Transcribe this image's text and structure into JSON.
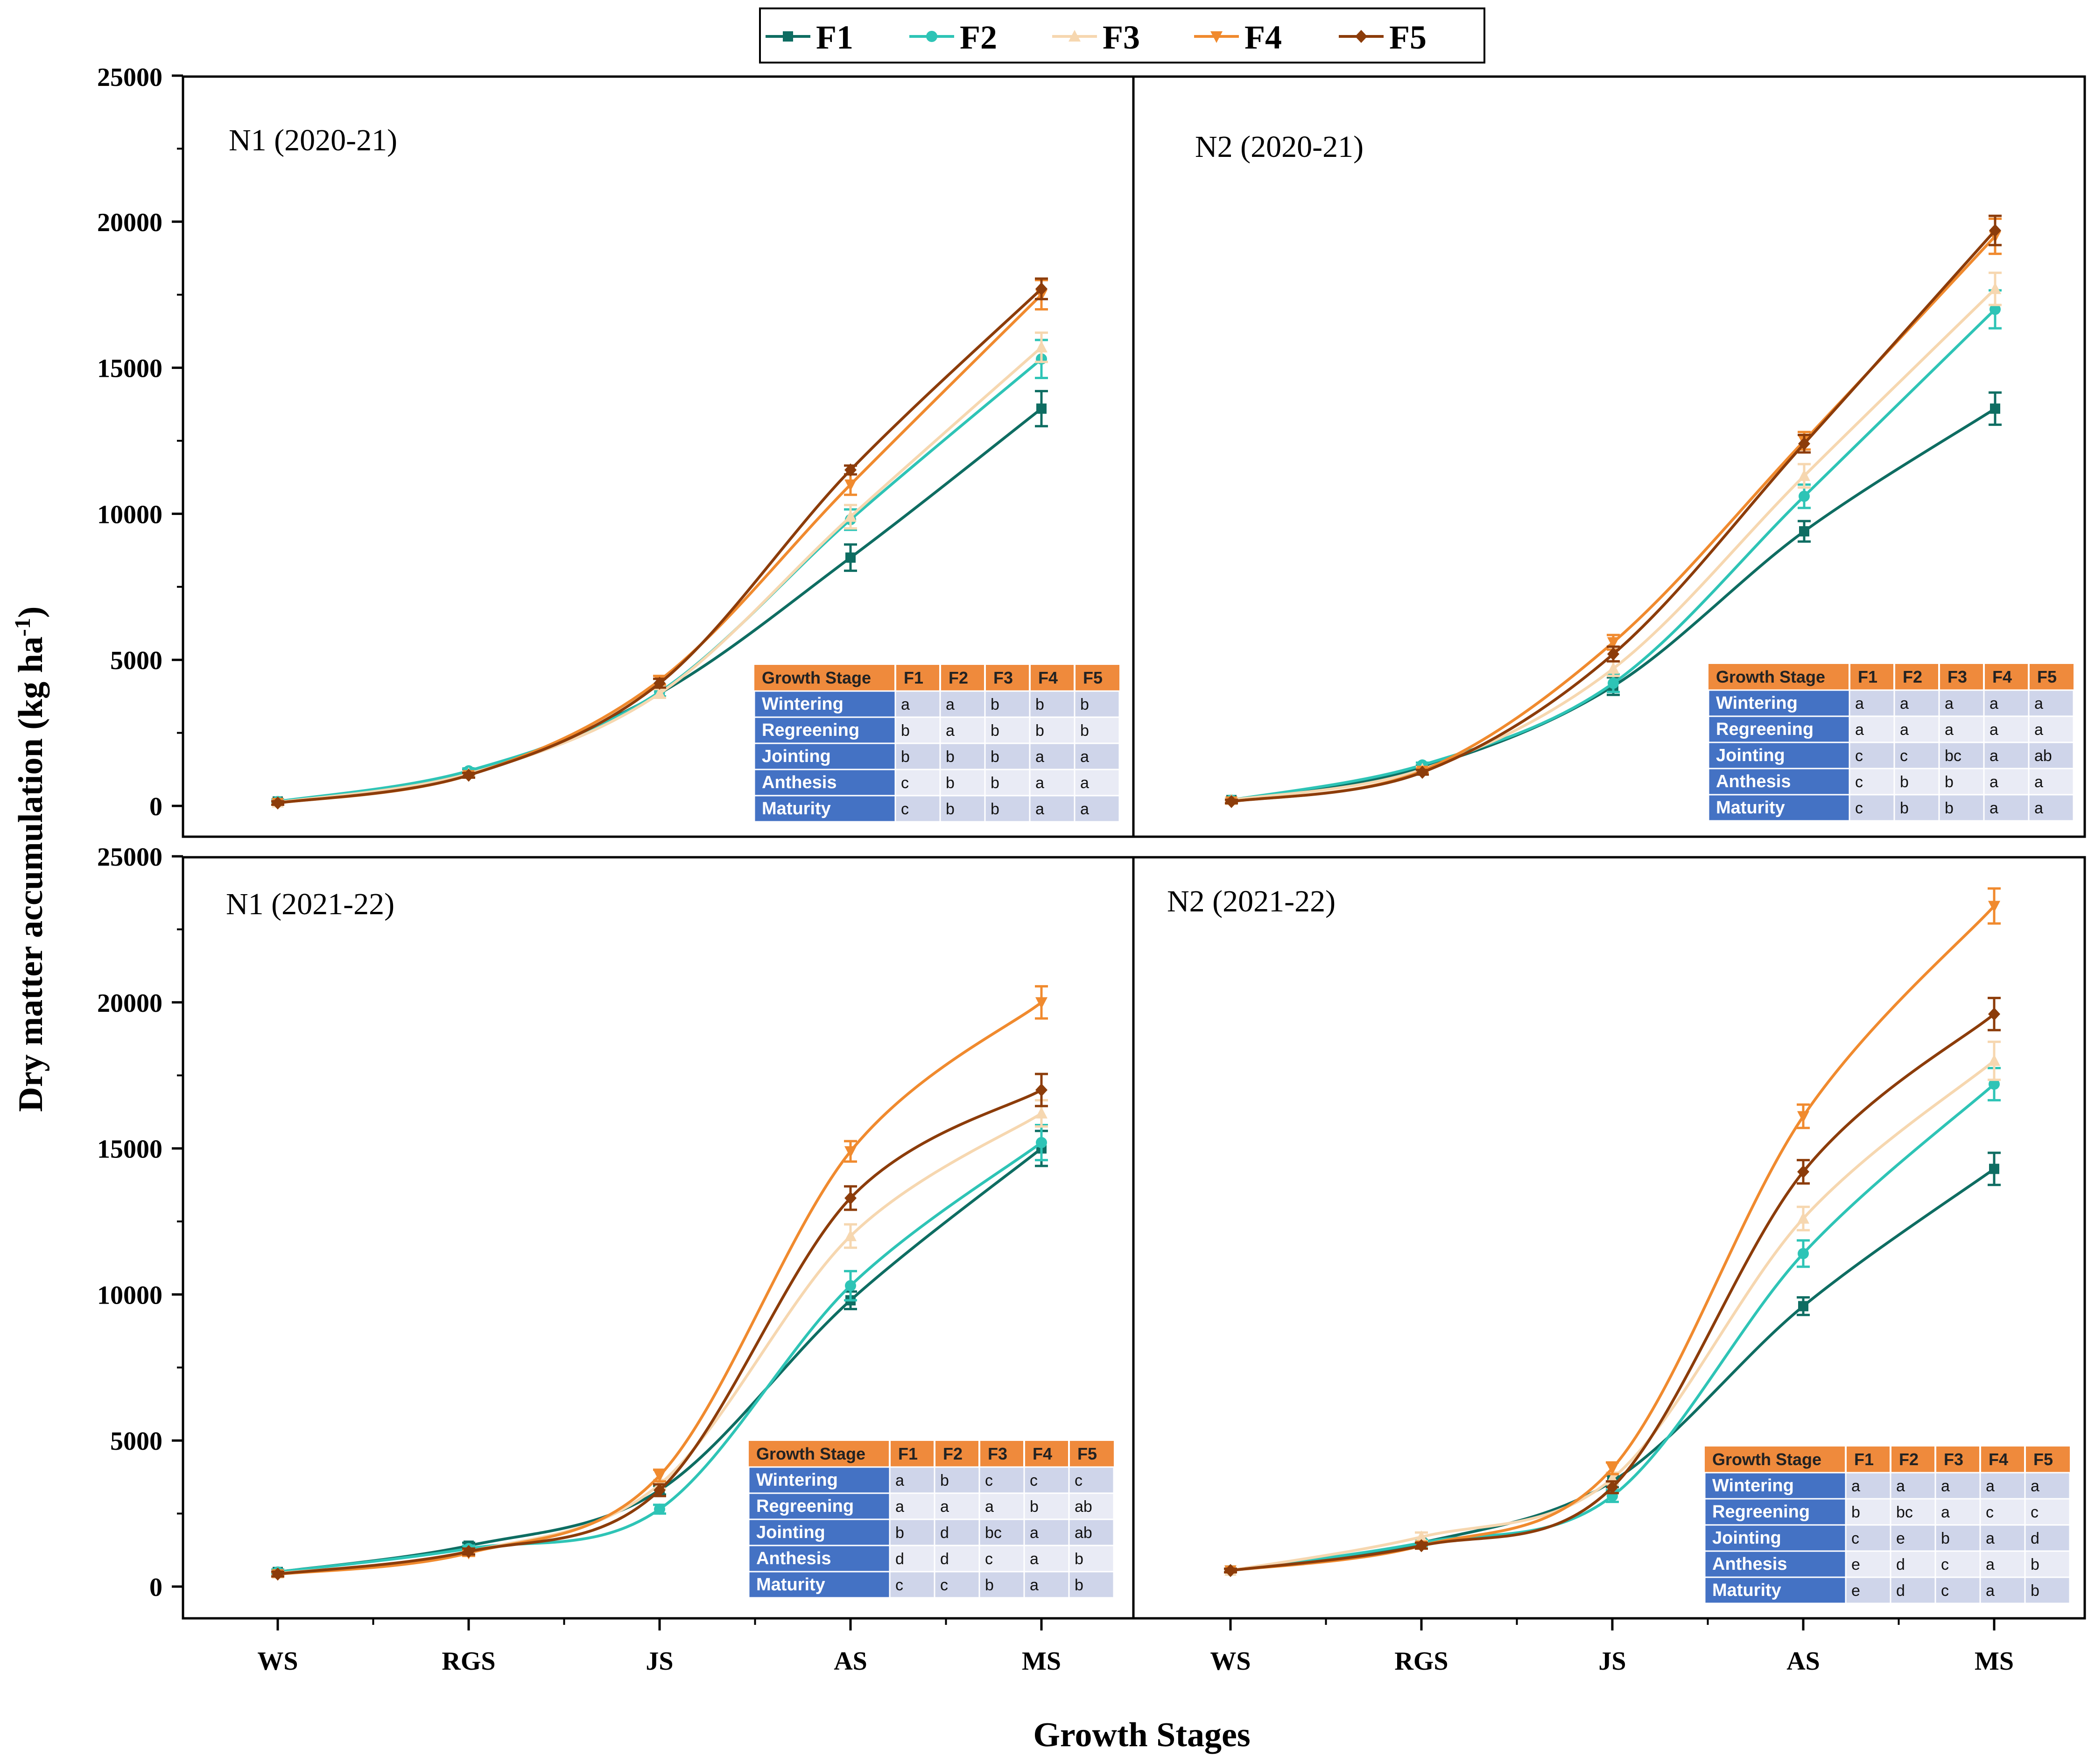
{
  "chart_data": {
    "type": "line",
    "xlabel": "Growth Stages",
    "ylabel": "Dry matter accumulation (kg ha-1)",
    "ylabel_base": "Dry matter accumulation (kg ha",
    "ylabel_sup": "-1",
    "ylabel_close": ")",
    "categories": [
      "WS",
      "RGS",
      "JS",
      "AS",
      "MS"
    ],
    "ylim": [
      0,
      25000
    ],
    "yticks": [
      "0",
      "5000",
      "10000",
      "15000",
      "20000",
      "25000"
    ],
    "legend": [
      "F1",
      "F2",
      "F3",
      "F4",
      "F5"
    ],
    "colors": {
      "F1": "#0e6d62",
      "F2": "#2ec4b6",
      "F3": "#f6d7b0",
      "F4": "#f08a2e",
      "F5": "#8c3c0a"
    },
    "markers": {
      "F1": "square",
      "F2": "circle",
      "F3": "triangle-up",
      "F4": "triangle-down",
      "F5": "diamond"
    },
    "table_header": [
      "Growth Stage",
      "F1",
      "F2",
      "F3",
      "F4",
      "F5"
    ],
    "table_rows": [
      "Wintering",
      "Regreening",
      "Jointing",
      "Anthesis",
      "Maturity"
    ],
    "panels": [
      {
        "title": "N1 (2020-21)",
        "series": [
          {
            "name": "F1",
            "values": [
              150,
              1150,
              3850,
              8500,
              13600
            ],
            "errors": [
              60,
              80,
              150,
              450,
              600
            ]
          },
          {
            "name": "F2",
            "values": [
              150,
              1200,
              3900,
              9800,
              15300
            ],
            "errors": [
              60,
              80,
              150,
              350,
              650
            ]
          },
          {
            "name": "F3",
            "values": [
              120,
              1100,
              3850,
              9900,
              15700
            ],
            "errors": [
              60,
              80,
              150,
              400,
              500
            ]
          },
          {
            "name": "F4",
            "values": [
              100,
              1050,
              4300,
              11000,
              17500
            ],
            "errors": [
              60,
              80,
              150,
              350,
              500
            ]
          },
          {
            "name": "F5",
            "values": [
              100,
              1050,
              4200,
              11500,
              17700
            ],
            "errors": [
              60,
              80,
              150,
              150,
              350
            ]
          }
        ],
        "letters": [
          [
            "a",
            "a",
            "b",
            "b",
            "b"
          ],
          [
            "b",
            "a",
            "b",
            "b",
            "b"
          ],
          [
            "b",
            "b",
            "b",
            "a",
            "a"
          ],
          [
            "c",
            "b",
            "b",
            "a",
            "a"
          ],
          [
            "c",
            "b",
            "b",
            "a",
            "a"
          ]
        ]
      },
      {
        "title": "N2 (2020-21)",
        "series": [
          {
            "name": "F1",
            "values": [
              200,
              1300,
              4100,
              9400,
              13600
            ],
            "errors": [
              60,
              80,
              300,
              350,
              550
            ]
          },
          {
            "name": "F2",
            "values": [
              200,
              1400,
              4200,
              10600,
              17000
            ],
            "errors": [
              60,
              80,
              300,
              400,
              650
            ]
          },
          {
            "name": "F3",
            "values": [
              200,
              1250,
              4700,
              11300,
              17700
            ],
            "errors": [
              60,
              80,
              250,
              400,
              550
            ]
          },
          {
            "name": "F4",
            "values": [
              150,
              1200,
              5600,
              12500,
              19500
            ],
            "errors": [
              60,
              80,
              250,
              300,
              600
            ]
          },
          {
            "name": "F5",
            "values": [
              150,
              1150,
              5200,
              12400,
              19700
            ],
            "errors": [
              60,
              80,
              250,
              300,
              500
            ]
          }
        ],
        "letters": [
          [
            "a",
            "a",
            "a",
            "a",
            "a"
          ],
          [
            "a",
            "a",
            "a",
            "a",
            "a"
          ],
          [
            "c",
            "c",
            "bc",
            "a",
            "ab"
          ],
          [
            "c",
            "b",
            "b",
            "a",
            "a"
          ],
          [
            "c",
            "b",
            "b",
            "a",
            "a"
          ]
        ]
      },
      {
        "title": "N1 (2021-22)",
        "series": [
          {
            "name": "F1",
            "values": [
              500,
              1400,
              3300,
              9800,
              15000
            ],
            "errors": [
              80,
              100,
              150,
              300,
              600
            ]
          },
          {
            "name": "F2",
            "values": [
              500,
              1300,
              2650,
              10300,
              15200
            ],
            "errors": [
              80,
              100,
              150,
              500,
              600
            ]
          },
          {
            "name": "F3",
            "values": [
              450,
              1200,
              3500,
              12000,
              16200
            ],
            "errors": [
              80,
              100,
              150,
              400,
              450
            ]
          },
          {
            "name": "F4",
            "values": [
              420,
              1150,
              3800,
              14900,
              20000
            ],
            "errors": [
              80,
              100,
              200,
              350,
              550
            ]
          },
          {
            "name": "F5",
            "values": [
              430,
              1200,
              3300,
              13300,
              17000
            ],
            "errors": [
              80,
              100,
              200,
              400,
              550
            ]
          }
        ],
        "letters": [
          [
            "a",
            "b",
            "c",
            "c",
            "c"
          ],
          [
            "a",
            "a",
            "a",
            "b",
            "ab"
          ],
          [
            "b",
            "d",
            "bc",
            "a",
            "ab"
          ],
          [
            "d",
            "d",
            "c",
            "a",
            "b"
          ],
          [
            "c",
            "c",
            "b",
            "a",
            "b"
          ]
        ]
      },
      {
        "title": "N2 (2021-22)",
        "series": [
          {
            "name": "F1",
            "values": [
              550,
              1500,
              3600,
              9600,
              14300
            ],
            "errors": [
              60,
              100,
              200,
              300,
              550
            ]
          },
          {
            "name": "F2",
            "values": [
              550,
              1500,
              3100,
              11400,
              17200
            ],
            "errors": [
              60,
              100,
              200,
              450,
              550
            ]
          },
          {
            "name": "F3",
            "values": [
              550,
              1700,
              3700,
              12600,
              18000
            ],
            "errors": [
              60,
              150,
              200,
              400,
              650
            ]
          },
          {
            "name": "F4",
            "values": [
              550,
              1400,
              4050,
              16100,
              23300
            ],
            "errors": [
              60,
              100,
              200,
              400,
              600
            ]
          },
          {
            "name": "F5",
            "values": [
              550,
              1400,
              3400,
              14200,
              19600
            ],
            "errors": [
              60,
              100,
              200,
              400,
              550
            ]
          }
        ],
        "letters": [
          [
            "a",
            "a",
            "a",
            "a",
            "a"
          ],
          [
            "b",
            "bc",
            "a",
            "c",
            "c"
          ],
          [
            "c",
            "e",
            "b",
            "a",
            "d"
          ],
          [
            "e",
            "d",
            "c",
            "a",
            "b"
          ],
          [
            "e",
            "d",
            "c",
            "a",
            "b"
          ]
        ]
      }
    ]
  }
}
